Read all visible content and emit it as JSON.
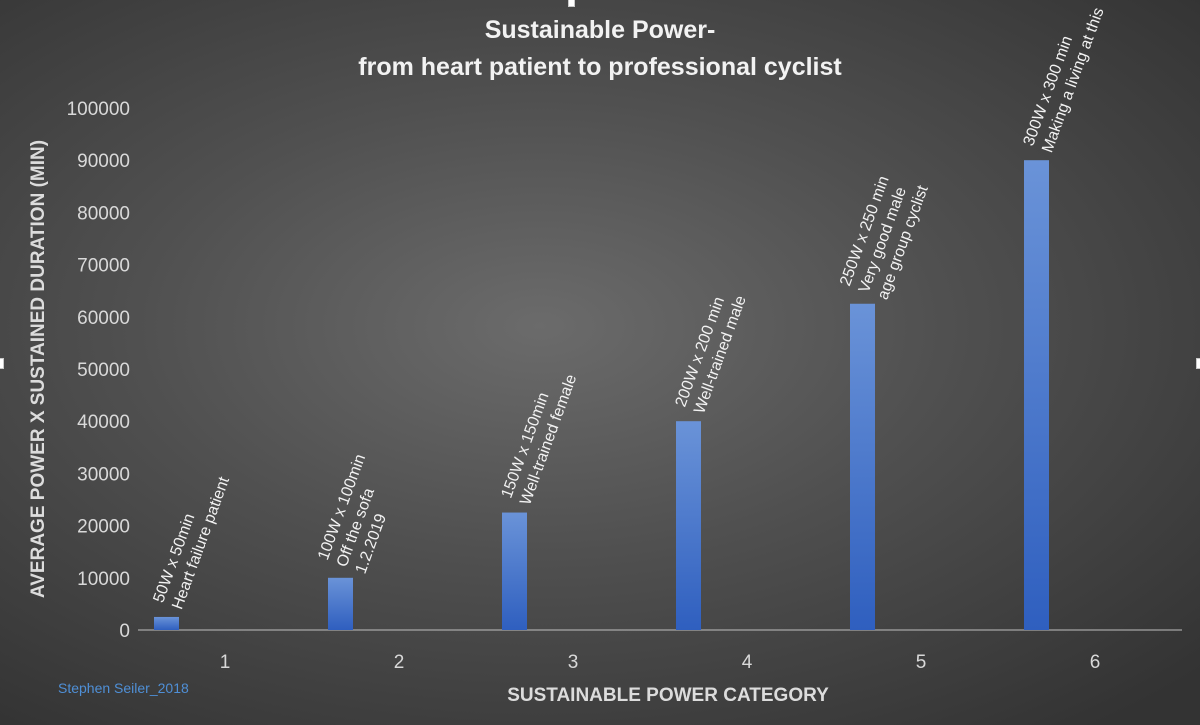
{
  "chart_data": {
    "type": "bar",
    "title_lines": [
      "Sustainable Power-",
      "from heart patient to professional cyclist"
    ],
    "xlabel": "SUSTAINABLE POWER CATEGORY",
    "ylabel": "AVERAGE POWER X SUSTAINED DURATION (MIN)",
    "categories": [
      "1",
      "2",
      "3",
      "4",
      "5",
      "6"
    ],
    "values": [
      2500,
      10000,
      22500,
      40000,
      62500,
      90000
    ],
    "ylim": [
      0,
      100000
    ],
    "yticks": [
      "0",
      "10000",
      "20000",
      "30000",
      "40000",
      "50000",
      "60000",
      "70000",
      "80000",
      "90000",
      "100000"
    ],
    "grid": false,
    "bar_color": "#4472c4",
    "annotations": [
      [
        "50W x 50min",
        "Heart  failure patient"
      ],
      [
        "100W x 100min",
        "Off the sofa",
        "1.2.2019"
      ],
      [
        "150W x 150min",
        "Well-trained female"
      ],
      [
        "200W x 200 min",
        "Well-trained male"
      ],
      [
        "250W x 250 min",
        "Very good male",
        "age group cyclist"
      ],
      [
        "300W x 300 min",
        "Making a living at this"
      ]
    ]
  },
  "credit": "Stephen Seiler_2018"
}
